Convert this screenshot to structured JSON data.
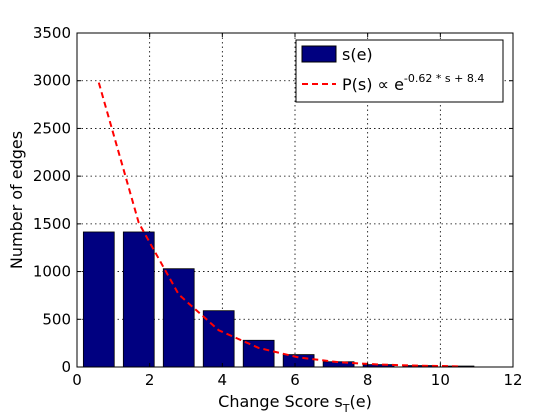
{
  "chart_data": {
    "type": "bar",
    "xlabel": "Change Score s",
    "xlabel_subscript": "T",
    "xlabel_suffix": "(e)",
    "ylabel": "Number of edges",
    "xlim": [
      0,
      12
    ],
    "ylim": [
      0,
      3500
    ],
    "xticks": [
      0,
      2,
      4,
      6,
      8,
      10,
      12
    ],
    "yticks": [
      0,
      500,
      1000,
      1500,
      2000,
      2500,
      3000,
      3500
    ],
    "grid": true,
    "legend_position": "top-right",
    "colors": {
      "bar": "#000080",
      "fit": "#ff0000"
    },
    "series": [
      {
        "name": "s(e)",
        "type": "bar",
        "bar_width": 0.85,
        "x": [
          0.6,
          1.7,
          2.8,
          3.9,
          5.0,
          6.1,
          7.2,
          8.3,
          9.4,
          10.5
        ],
        "values": [
          1415,
          1415,
          1030,
          590,
          280,
          130,
          55,
          25,
          15,
          10
        ]
      },
      {
        "name_parts": {
          "base": "P(s) ∝ e",
          "exponent": "-0.62 * s + 8.4"
        },
        "type": "line",
        "style": "dashed",
        "x": [
          0.6,
          1.7,
          2.8,
          3.9,
          5.0,
          6.1,
          7.2,
          8.3,
          9.4,
          10.5
        ],
        "values": [
          2980,
          1510,
          760,
          385,
          200,
          100,
          50,
          26,
          14,
          7
        ]
      }
    ]
  }
}
